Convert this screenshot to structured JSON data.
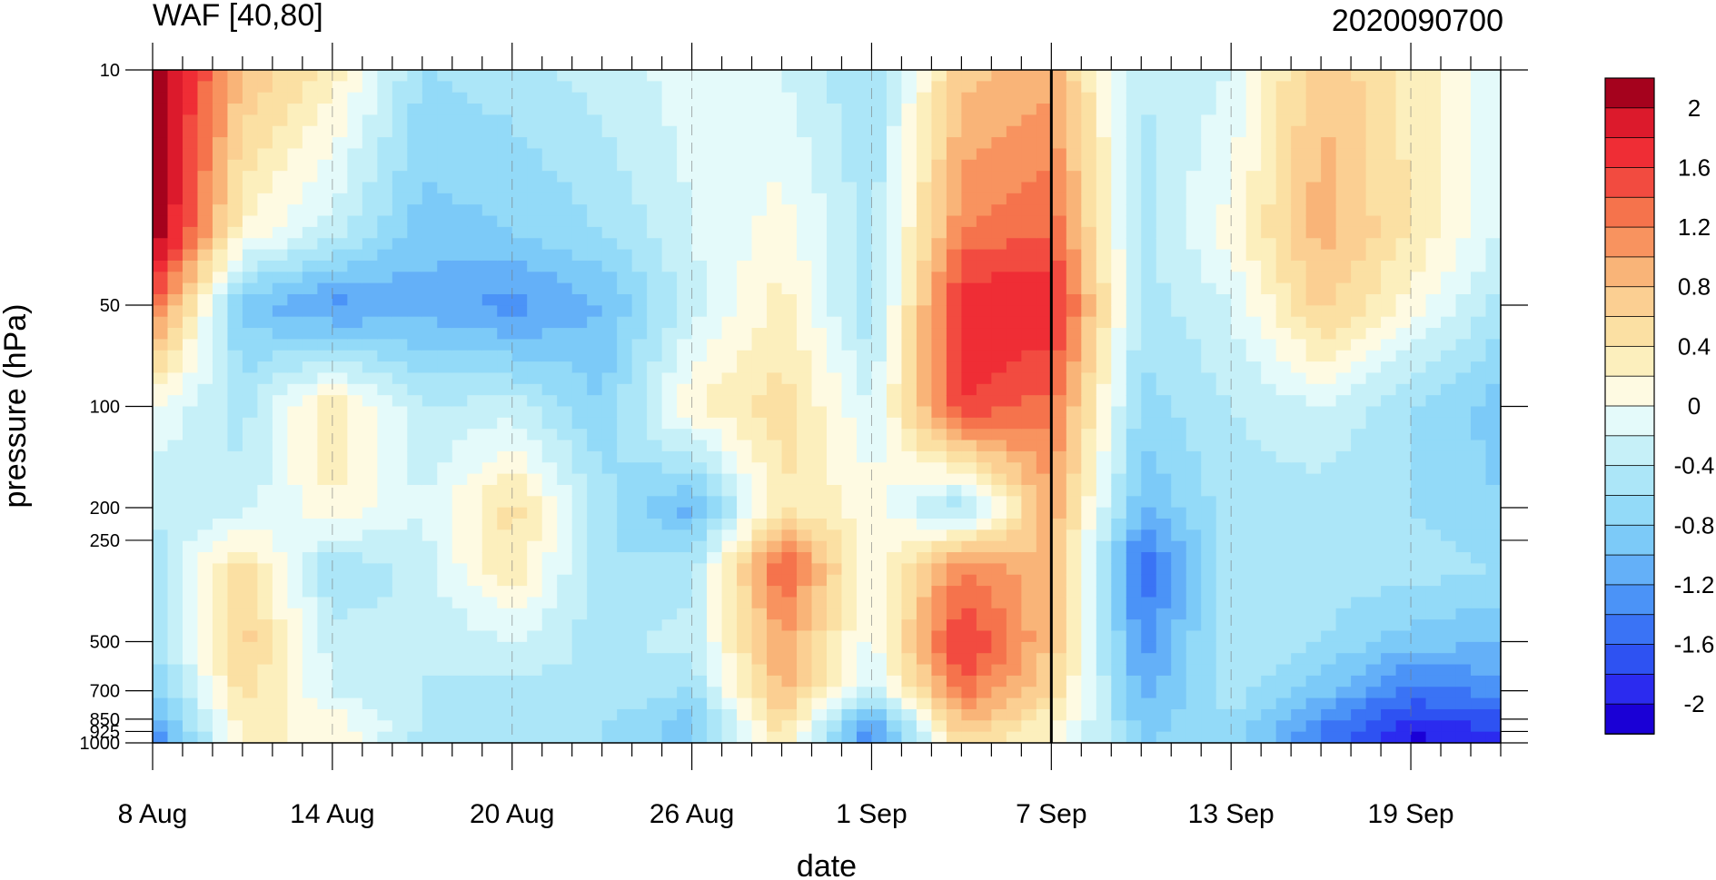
{
  "chart_data": {
    "type": "heatmap",
    "title_left": "WAF [40,80]",
    "title_right": "2020090700",
    "xlabel": "date",
    "ylabel": "pressure (hPa)",
    "x_tick_labels": [
      "8 Aug",
      "14 Aug",
      "20 Aug",
      "26 Aug",
      "1 Sep",
      "7 Sep",
      "13 Sep",
      "19 Sep"
    ],
    "x_range": [
      "2020-08-08",
      "2020-09-22"
    ],
    "y_scale": "log",
    "y_reversed": true,
    "y_range": [
      1000,
      10
    ],
    "y_tick_values": [
      10,
      50,
      100,
      200,
      250,
      500,
      700,
      850,
      925,
      1000
    ],
    "y_tick_labels": [
      "10",
      "50",
      "100",
      "200",
      "250",
      "500",
      "700",
      "850",
      "925",
      "1000"
    ],
    "vertical_line": "2020-09-07",
    "colorbar": {
      "levels": [
        -2.2,
        -2.0,
        -1.8,
        -1.6,
        -1.4,
        -1.2,
        -1.0,
        -0.8,
        -0.6,
        -0.4,
        -0.2,
        0,
        0.2,
        0.4,
        0.6,
        0.8,
        1.0,
        1.2,
        1.4,
        1.6,
        1.8,
        2.0,
        2.2
      ],
      "labels": [
        "2",
        "1.6",
        "1.2",
        "0.8",
        "0.4",
        "0",
        "-0.4",
        "-0.8",
        "-1.2",
        "-1.6",
        "-2"
      ],
      "label_values": [
        2,
        1.6,
        1.2,
        0.8,
        0.4,
        0,
        -0.4,
        -0.8,
        -1.2,
        -1.6,
        -2
      ],
      "colors": [
        "#1a00d6",
        "#2b2bef",
        "#2e52f2",
        "#3a73f5",
        "#4b93f7",
        "#64b0f8",
        "#7ccaf8",
        "#93daf8",
        "#ace6f8",
        "#c6f0f8",
        "#e4fafa",
        "#fefae2",
        "#fcefbd",
        "#fbe0a3",
        "#fbcf92",
        "#f9b478",
        "#f8935f",
        "#f5734c",
        "#f24b40",
        "#ef2d35",
        "#dc1a2c",
        "#a5021d"
      ]
    },
    "grid_dates": [
      "2020-08-08",
      "2020-08-11",
      "2020-08-14",
      "2020-08-17",
      "2020-08-20",
      "2020-08-23",
      "2020-08-26",
      "2020-08-29",
      "2020-09-01",
      "2020-09-04",
      "2020-09-07",
      "2020-09-10",
      "2020-09-13",
      "2020-09-16",
      "2020-09-19",
      "2020-09-22"
    ],
    "grid_levels": [
      10,
      30,
      50,
      100,
      200,
      300,
      500,
      700,
      850,
      1000
    ],
    "values": [
      [
        2.3,
        0.8,
        0.3,
        -0.6,
        -0.5,
        -0.3,
        -0.1,
        -0.2,
        -0.6,
        0.7,
        0.9,
        -0.4,
        -0.2,
        0.8,
        0.3,
        -0.1
      ],
      [
        2.3,
        0.2,
        -0.3,
        -0.9,
        -0.8,
        -0.6,
        -0.2,
        0.1,
        -0.5,
        1.2,
        1.4,
        -0.5,
        0.1,
        0.9,
        0.4,
        -0.2
      ],
      [
        1.4,
        -0.9,
        -1.3,
        -1.1,
        -1.3,
        -1.0,
        -0.3,
        0.3,
        -0.6,
        1.8,
        1.8,
        -0.5,
        -0.2,
        0.7,
        0.1,
        -0.5
      ],
      [
        0.0,
        -0.5,
        0.4,
        -0.4,
        -0.3,
        -0.8,
        0.2,
        0.5,
        -0.2,
        1.6,
        1.3,
        -0.7,
        -0.4,
        -0.2,
        -0.6,
        -0.9
      ],
      [
        -0.4,
        -0.3,
        0.2,
        -0.2,
        0.5,
        -0.5,
        -1.1,
        0.4,
        0.1,
        -0.6,
        1.0,
        -1.0,
        -0.5,
        -0.5,
        -0.6,
        -0.8
      ],
      [
        -0.5,
        0.5,
        -0.6,
        -0.3,
        0.4,
        -0.6,
        -0.5,
        1.5,
        0.0,
        1.2,
        0.8,
        -1.6,
        -0.5,
        -0.5,
        -0.5,
        -0.6
      ],
      [
        -0.6,
        0.7,
        -0.3,
        -0.4,
        -0.2,
        -0.5,
        -0.3,
        1.0,
        -0.1,
        1.7,
        0.8,
        -1.3,
        -0.4,
        -0.6,
        -0.9,
        -1.0
      ],
      [
        -0.9,
        0.5,
        -0.2,
        -0.4,
        -0.5,
        -0.4,
        -0.6,
        0.9,
        -0.3,
        1.3,
        0.6,
        -1.1,
        -0.5,
        -0.9,
        -1.5,
        -1.3
      ],
      [
        -1.1,
        0.3,
        0.1,
        -0.4,
        -0.6,
        -0.6,
        -0.9,
        0.6,
        -1.2,
        0.9,
        0.3,
        -0.9,
        -0.6,
        -1.3,
        -1.8,
        -1.7
      ],
      [
        -1.5,
        0.2,
        0.2,
        -0.5,
        -0.6,
        -0.6,
        -0.9,
        0.4,
        -1.4,
        0.5,
        0.2,
        -0.8,
        -0.7,
        -1.5,
        -2.1,
        -1.9
      ]
    ]
  }
}
